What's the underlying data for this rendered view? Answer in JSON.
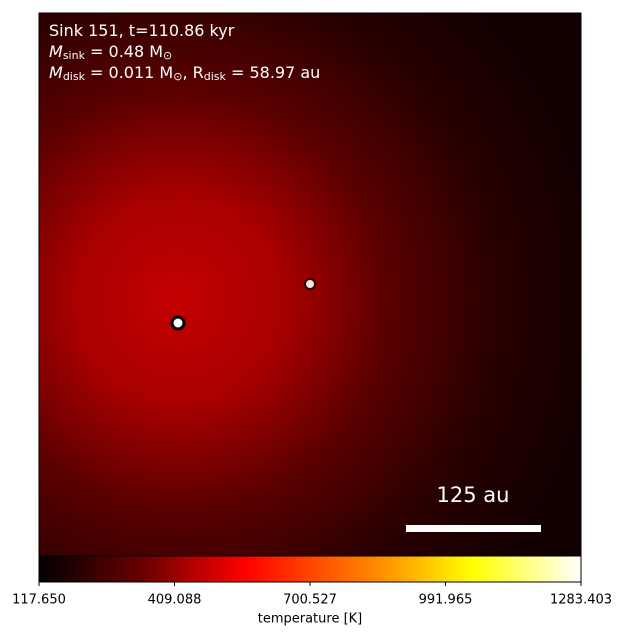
{
  "chart_data": {
    "type": "heatmap",
    "annotations": [
      [
        {
          "text": "Sink 151, t=110.86 kyr"
        }
      ],
      [
        {
          "text": "M"
        },
        {
          "sub": "sink"
        },
        {
          "text": " = 0.48 M"
        },
        {
          "sub": "⊙"
        }
      ],
      [
        {
          "text": "M"
        },
        {
          "sub": "disk"
        },
        {
          "text": " = 0.011 M"
        },
        {
          "sub": "⊙"
        },
        {
          "text": ", R"
        },
        {
          "sub": "disk"
        },
        {
          "text": " = 58.97 au"
        }
      ]
    ],
    "scale_bar": "125 au",
    "colorbar_label": "temperature [K]",
    "clim": [
      117.65,
      1283.403
    ],
    "cticks": [
      {
        "value": 117.65,
        "label": "117.650"
      },
      409.088,
      700.527,
      991.965,
      1283.403
    ]
  }
}
